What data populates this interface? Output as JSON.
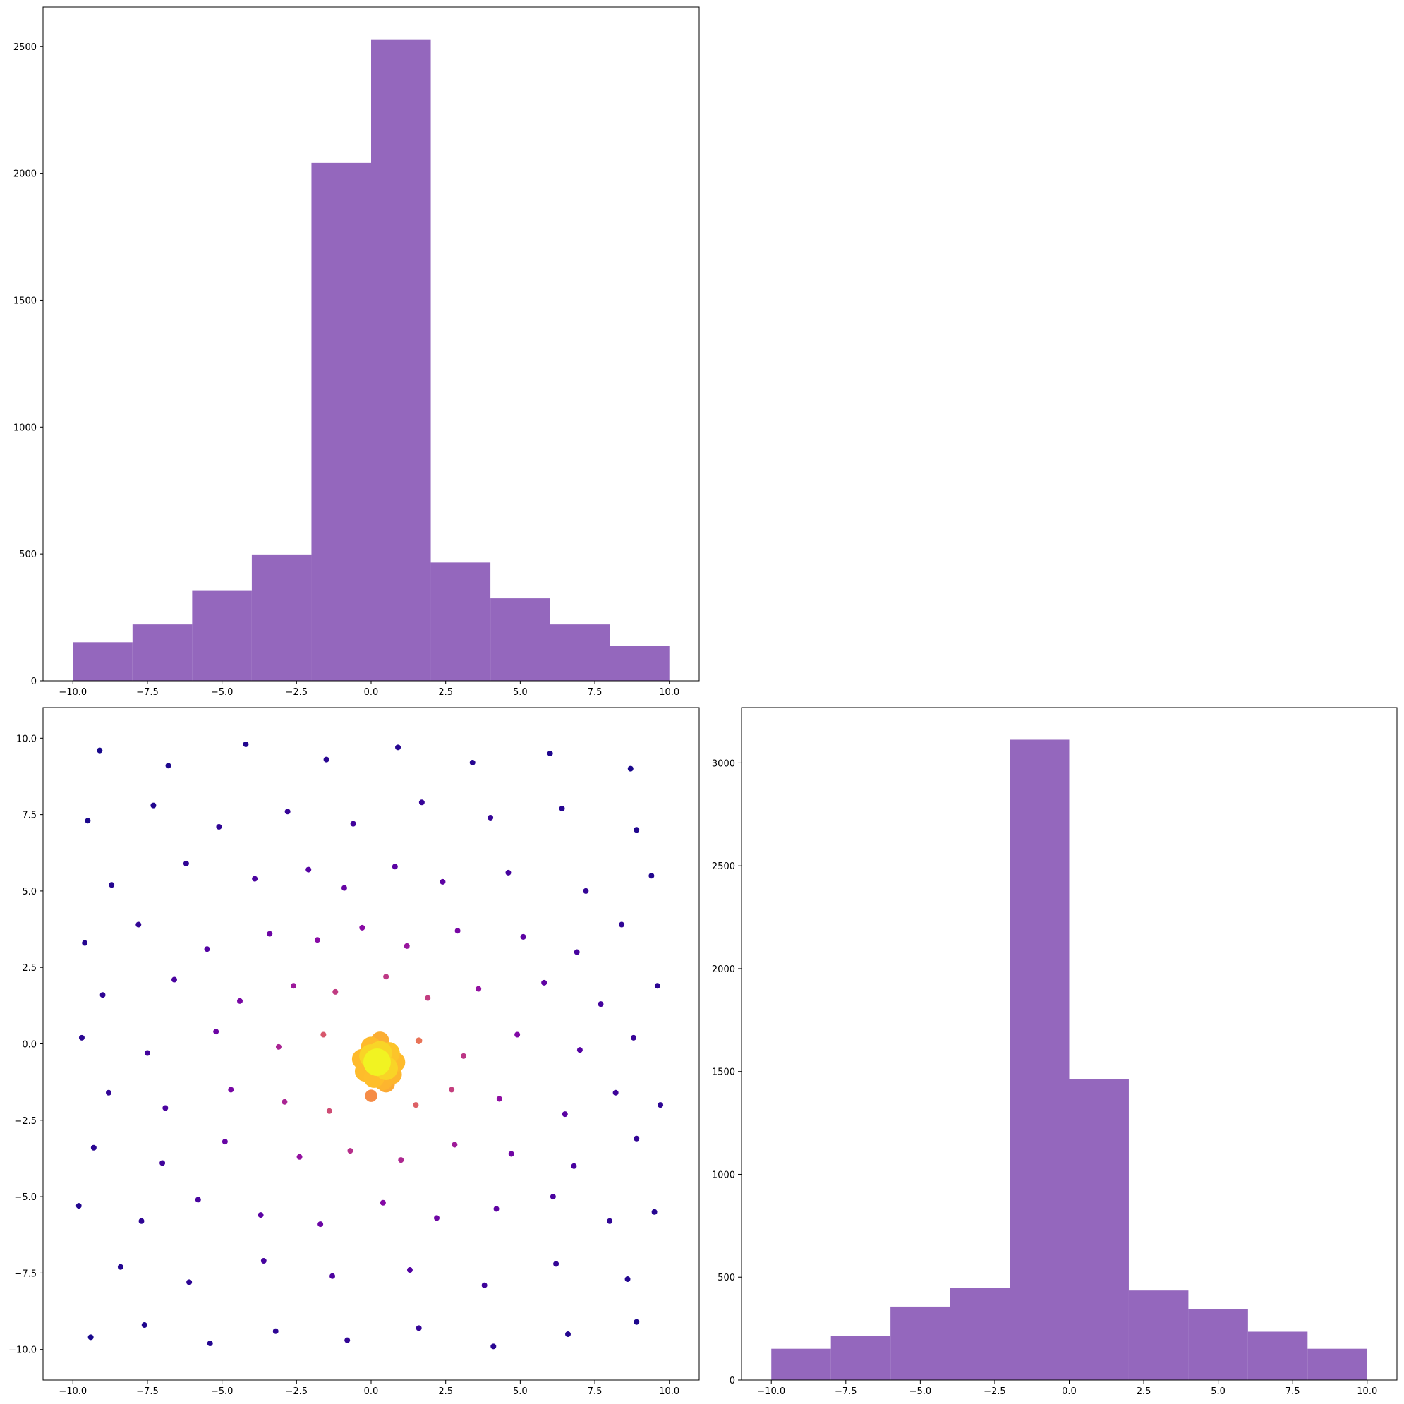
{
  "chart_data": [
    {
      "type": "histogram",
      "color": "#9467bd",
      "bins": [
        -10,
        -8,
        -6,
        -4,
        -2,
        0,
        2,
        4,
        6,
        8,
        10
      ],
      "values": [
        152,
        222,
        357,
        498,
        2041,
        2528,
        466,
        325,
        222,
        138
      ],
      "xlim": [
        -11,
        11
      ],
      "ylim": [
        0,
        2655
      ],
      "xticks": [
        {
          "value": -10,
          "label": "−10.0"
        },
        {
          "value": -7.5,
          "label": "−7.5"
        },
        {
          "value": -5,
          "label": "−5.0"
        },
        {
          "value": -2.5,
          "label": "−2.5"
        },
        {
          "value": 0,
          "label": "0.0"
        },
        {
          "value": 2.5,
          "label": "2.5"
        },
        {
          "value": 5,
          "label": "5.0"
        },
        {
          "value": 7.5,
          "label": "7.5"
        },
        {
          "value": 10,
          "label": "10.0"
        }
      ],
      "yticks": [
        0,
        500,
        1000,
        1500,
        2000,
        2500
      ]
    },
    {
      "type": "scatter",
      "colormap": "plasma",
      "x": [
        -9.1,
        -6.8,
        -4.2,
        -1.5,
        0.9,
        3.4,
        6.0,
        8.7,
        -9.5,
        -7.3,
        -5.1,
        -2.8,
        -0.6,
        1.7,
        4.0,
        6.4,
        8.9,
        -8.7,
        -6.2,
        -3.9,
        -2.1,
        -0.9,
        0.8,
        2.4,
        4.6,
        7.2,
        9.4,
        -9.6,
        -7.8,
        -5.5,
        -3.4,
        -1.8,
        -0.3,
        1.2,
        2.9,
        5.1,
        6.9,
        8.4,
        -9.0,
        -6.6,
        -4.4,
        -2.6,
        -1.2,
        0.5,
        1.9,
        3.6,
        5.8,
        7.7,
        9.6,
        -9.7,
        -7.5,
        -5.2,
        -3.1,
        -1.6,
        1.6,
        3.1,
        4.9,
        7.0,
        8.8,
        -8.8,
        -6.9,
        -4.7,
        -2.9,
        -1.4,
        0.0,
        1.5,
        2.7,
        4.3,
        6.5,
        8.2,
        9.7,
        -9.3,
        -7.0,
        -4.9,
        -2.4,
        -0.7,
        1.0,
        2.8,
        4.7,
        6.8,
        8.9,
        -9.8,
        -7.7,
        -5.8,
        -3.7,
        -1.7,
        0.4,
        2.2,
        4.2,
        6.1,
        8.0,
        9.5,
        -8.4,
        -6.1,
        -3.6,
        -1.3,
        1.3,
        3.8,
        6.2,
        8.6,
        -9.4,
        -7.6,
        -5.4,
        -3.2,
        -0.8,
        1.6,
        4.1,
        6.6,
        8.9,
        0.0,
        0.3,
        0.6,
        -0.3,
        0.2,
        0.5,
        0.8,
        -0.2,
        0.1,
        0.4,
        0.7,
        0.3,
        0.0,
        0.5
      ],
      "y": [
        9.6,
        9.1,
        9.8,
        9.3,
        9.7,
        9.2,
        9.5,
        9.0,
        7.3,
        7.8,
        7.1,
        7.6,
        7.2,
        7.9,
        7.4,
        7.7,
        7.0,
        5.2,
        5.9,
        5.4,
        5.7,
        5.1,
        5.8,
        5.3,
        5.6,
        5.0,
        5.5,
        3.3,
        3.9,
        3.1,
        3.6,
        3.4,
        3.8,
        3.2,
        3.7,
        3.5,
        3.0,
        3.9,
        1.6,
        2.1,
        1.4,
        1.9,
        1.7,
        2.2,
        1.5,
        1.8,
        2.0,
        1.3,
        1.9,
        0.2,
        -0.3,
        0.4,
        -0.1,
        0.3,
        0.1,
        -0.4,
        0.3,
        -0.2,
        0.2,
        -1.6,
        -2.1,
        -1.5,
        -1.9,
        -2.2,
        -1.7,
        -2.0,
        -1.5,
        -1.8,
        -2.3,
        -1.6,
        -2.0,
        -3.4,
        -3.9,
        -3.2,
        -3.7,
        -3.5,
        -3.8,
        -3.3,
        -3.6,
        -4.0,
        -3.1,
        -5.3,
        -5.8,
        -5.1,
        -5.6,
        -5.9,
        -5.2,
        -5.7,
        -5.4,
        -5.0,
        -5.8,
        -5.5,
        -7.3,
        -7.8,
        -7.1,
        -7.6,
        -7.4,
        -7.9,
        -7.2,
        -7.7,
        -9.6,
        -9.2,
        -9.8,
        -9.4,
        -9.7,
        -9.3,
        -9.9,
        -9.5,
        -9.1,
        -0.1,
        0.1,
        -0.3,
        -0.5,
        -0.6,
        -0.8,
        -0.6,
        -0.9,
        -1.1,
        -1.2,
        -1.0,
        -0.3,
        -0.4,
        -1.3
      ],
      "xlim": [
        -11,
        11
      ],
      "ylim": [
        -11,
        11
      ],
      "xticks": [
        {
          "value": -10,
          "label": "−10.0"
        },
        {
          "value": -7.5,
          "label": "−7.5"
        },
        {
          "value": -5,
          "label": "−5.0"
        },
        {
          "value": -2.5,
          "label": "−2.5"
        },
        {
          "value": 0,
          "label": "0.0"
        },
        {
          "value": 2.5,
          "label": "2.5"
        },
        {
          "value": 5,
          "label": "5.0"
        },
        {
          "value": 7.5,
          "label": "7.5"
        },
        {
          "value": 10,
          "label": "10.0"
        }
      ],
      "yticks": [
        {
          "value": -10,
          "label": "−10.0"
        },
        {
          "value": -7.5,
          "label": "−7.5"
        },
        {
          "value": -5,
          "label": "−5.0"
        },
        {
          "value": -2.5,
          "label": "−2.5"
        },
        {
          "value": 0,
          "label": "0.0"
        },
        {
          "value": 2.5,
          "label": "2.5"
        },
        {
          "value": 5,
          "label": "5.0"
        },
        {
          "value": 7.5,
          "label": "7.5"
        },
        {
          "value": 10,
          "label": "10.0"
        }
      ]
    },
    {
      "type": "histogram",
      "color": "#9467bd",
      "bins": [
        -10,
        -8,
        -6,
        -4,
        -2,
        0,
        2,
        4,
        6,
        8,
        10
      ],
      "values": [
        152,
        213,
        357,
        448,
        3113,
        1463,
        435,
        344,
        235,
        152
      ],
      "xlim": [
        -11,
        11
      ],
      "ylim": [
        0,
        3269
      ],
      "xticks": [
        {
          "value": -10,
          "label": "−10.0"
        },
        {
          "value": -7.5,
          "label": "−7.5"
        },
        {
          "value": -5,
          "label": "−5.0"
        },
        {
          "value": -2.5,
          "label": "−2.5"
        },
        {
          "value": 0,
          "label": "0.0"
        },
        {
          "value": 2.5,
          "label": "2.5"
        },
        {
          "value": 5,
          "label": "5.0"
        },
        {
          "value": 7.5,
          "label": "7.5"
        },
        {
          "value": 10,
          "label": "10.0"
        }
      ],
      "yticks": [
        0,
        500,
        1000,
        1500,
        2000,
        2500,
        3000
      ]
    }
  ]
}
